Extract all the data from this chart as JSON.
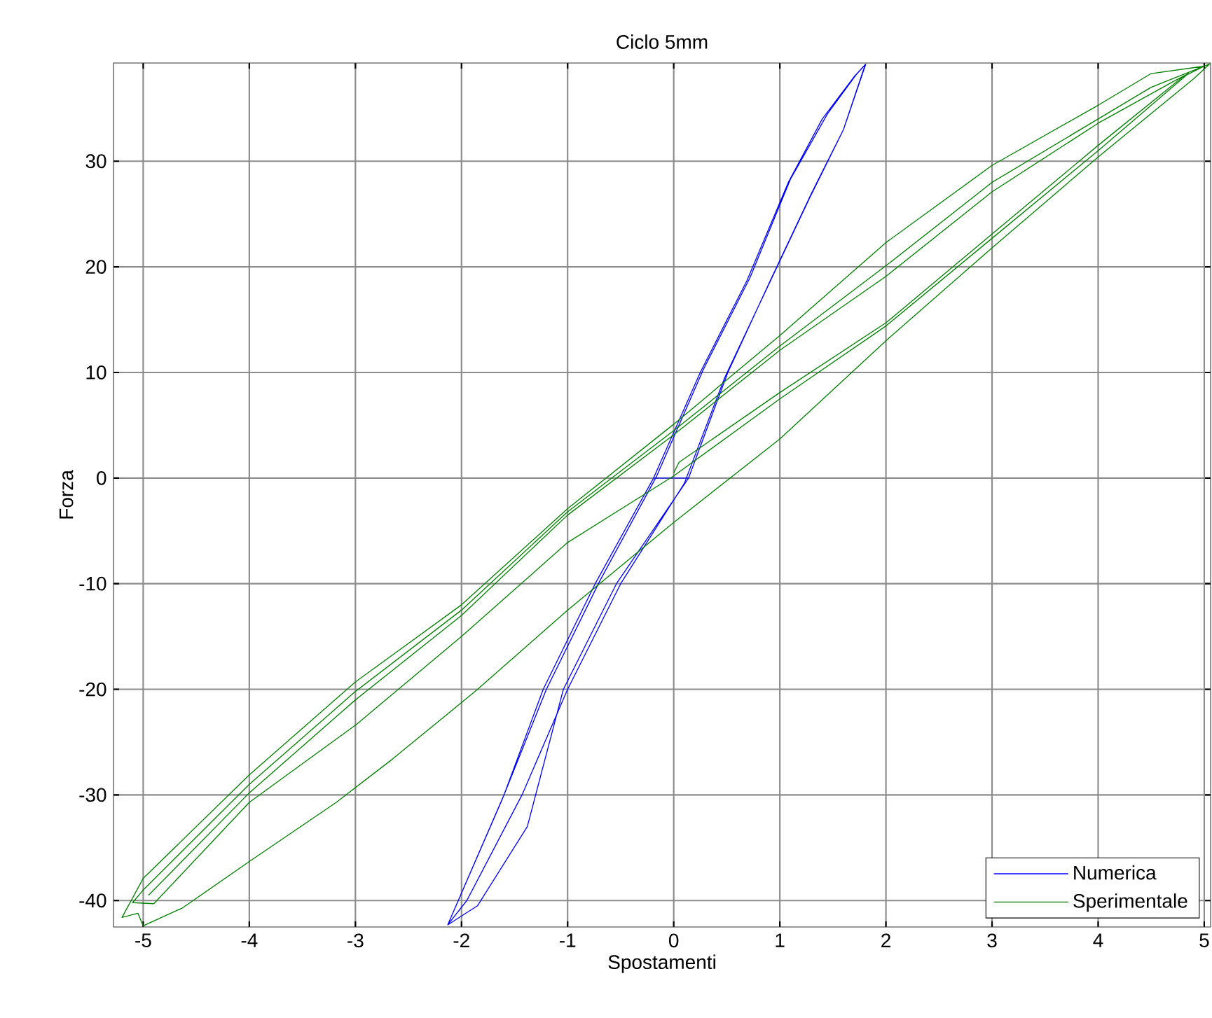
{
  "chart_data": {
    "type": "line",
    "title": "Ciclo 5mm",
    "xlabel": "Spostamenti",
    "ylabel": "Forza",
    "xlim": [
      -5.28,
      5.06
    ],
    "ylim": [
      -42.5,
      39.3
    ],
    "xticks": [
      -5,
      -4,
      -3,
      -2,
      -1,
      0,
      1,
      2,
      3,
      4,
      5
    ],
    "yticks": [
      -40,
      -30,
      -20,
      -10,
      0,
      10,
      20,
      30
    ],
    "grid": true,
    "legend": "bottom right",
    "marker": "none",
    "line_style": "solid",
    "series": [
      {
        "name": "Numerica",
        "color": "#0000ff",
        "x": [
          -0.19,
          0.14,
          0.51,
          0.91,
          1.3,
          1.6,
          1.81,
          1.7,
          1.4,
          1.08,
          0.69,
          0.25,
          -0.19,
          -0.74,
          -1.23,
          -1.6,
          -2.13,
          -1.85,
          -1.38,
          -1.04,
          -0.54,
          0.14,
          0.51,
          0.91,
          1.3,
          1.6,
          1.81,
          1.72,
          1.45,
          1.1,
          0.72,
          0.28,
          -0.16,
          -0.7,
          -1.2,
          -1.62,
          -2.13,
          -1.95,
          -1.43,
          -1.0,
          -0.5,
          0.1,
          0.48,
          0.88,
          1.28,
          1.6,
          1.8
        ],
        "values": [
          0,
          0,
          10,
          18.7,
          27,
          33,
          39.2,
          38,
          34,
          28,
          18.7,
          10,
          0,
          -10,
          -20,
          -30,
          -42.3,
          -40.5,
          -33,
          -20,
          -10,
          0,
          10,
          18.7,
          27,
          33,
          39.2,
          38.2,
          34.5,
          28.3,
          19,
          10.3,
          0.2,
          -9.8,
          -20,
          -30.5,
          -42.3,
          -40,
          -30,
          -20,
          -10,
          -0.5,
          9.5,
          18,
          26.5,
          33,
          39
        ]
      },
      {
        "name": "Sperimentale",
        "color": "#008000",
        "x": [
          0,
          0.05,
          1,
          2,
          3,
          4,
          4.8,
          5.0,
          4.5,
          4,
          3,
          2,
          1,
          0,
          -1,
          -2,
          -3,
          -4,
          -5,
          -5.2,
          -5.05,
          -5,
          -4.63,
          -4,
          -3.18,
          -2.65,
          -1.86,
          -1,
          0,
          1,
          2,
          3,
          4,
          4.9,
          5.05,
          4.5,
          4,
          3,
          2,
          1,
          0,
          -1,
          -2,
          -3,
          -4,
          -5,
          -5.1,
          -4.9,
          -4,
          -3,
          -2,
          -1,
          0,
          1,
          2,
          3,
          4,
          4.85,
          4.7,
          4,
          3,
          2,
          1,
          0,
          -1,
          -2,
          -3,
          -4,
          -4.95
        ],
        "values": [
          0.5,
          1.5,
          8.1,
          14.7,
          23.1,
          31.5,
          38,
          39,
          38.3,
          35.3,
          29.6,
          22.3,
          13.5,
          5.1,
          -2.9,
          -12,
          -19.3,
          -28.1,
          -37.9,
          -41.6,
          -41.2,
          -42.4,
          -40.7,
          -36.3,
          -30.7,
          -26.6,
          -20.1,
          -12.5,
          -4.2,
          3.7,
          13,
          21.8,
          30.4,
          37.8,
          39.2,
          37,
          34,
          28,
          20.1,
          12.5,
          4.5,
          -3.2,
          -12.5,
          -20.2,
          -29,
          -39,
          -40.2,
          -40.3,
          -30.7,
          -23.4,
          -15,
          -6.1,
          0.2,
          7.5,
          14.4,
          22.7,
          31,
          38.3,
          37.5,
          33.6,
          27.1,
          19.1,
          12.1,
          4.1,
          -3.5,
          -13,
          -21,
          -29.8,
          -39.5
        ]
      }
    ]
  }
}
